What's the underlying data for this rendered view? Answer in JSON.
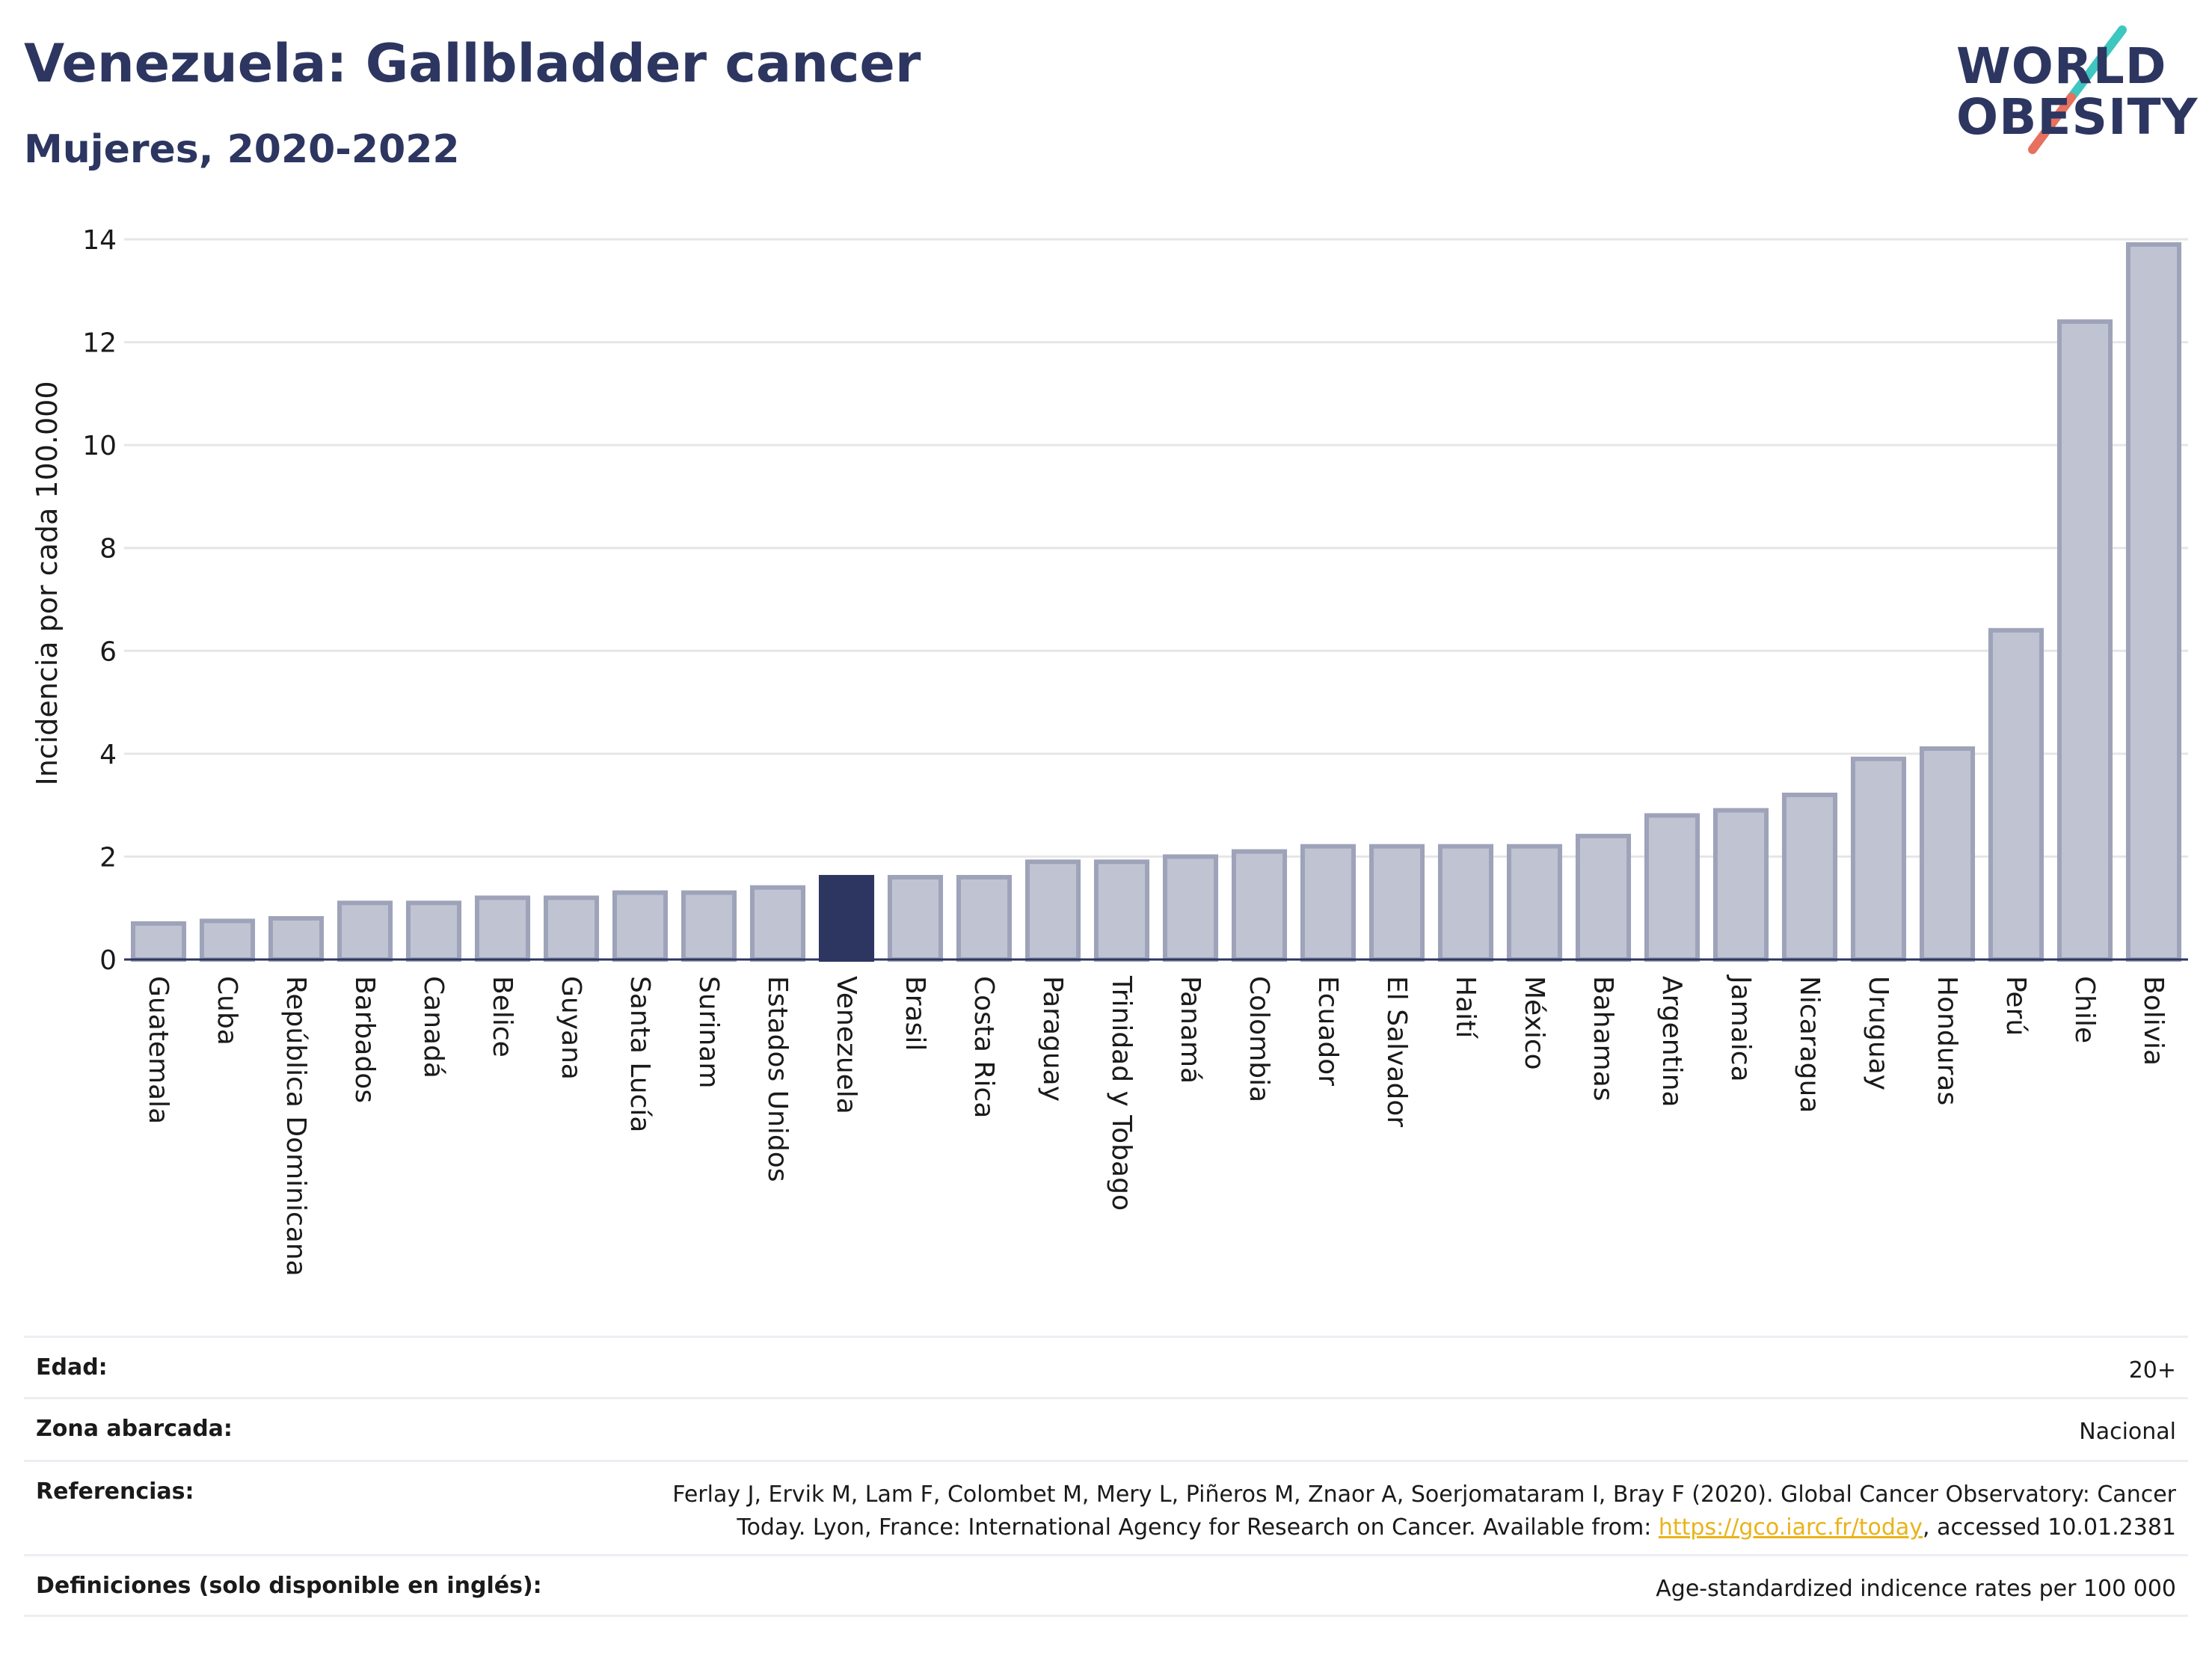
{
  "header": {
    "title": "Venezuela: Gallbladder cancer",
    "subtitle": "Mujeres, 2020-2022"
  },
  "logo": {
    "line1": "WORLD",
    "line2": "OBESITY"
  },
  "chart_data": {
    "type": "bar",
    "ylabel": "Incidencia por cada 100.000",
    "ylim": [
      0,
      14
    ],
    "yticks": [
      0,
      2,
      4,
      6,
      8,
      10,
      12,
      14
    ],
    "grid": true,
    "highlight": "Venezuela",
    "categories": [
      "Guatemala",
      "Cuba",
      "República Dominicana",
      "Barbados",
      "Canadá",
      "Belice",
      "Guyana",
      "Santa Lucía",
      "Surinam",
      "Estados Unidos",
      "Venezuela",
      "Brasil",
      "Costa Rica",
      "Paraguay",
      "Trinidad y Tobago",
      "Panamá",
      "Colombia",
      "Ecuador",
      "El Salvador",
      "Haití",
      "México",
      "Bahamas",
      "Argentina",
      "Jamaica",
      "Nicaragua",
      "Uruguay",
      "Honduras",
      "Perú",
      "Chile",
      "Bolivia"
    ],
    "values": [
      0.7,
      0.75,
      0.8,
      1.1,
      1.1,
      1.2,
      1.2,
      1.3,
      1.3,
      1.4,
      1.6,
      1.6,
      1.6,
      1.9,
      1.9,
      2.0,
      2.1,
      2.2,
      2.2,
      2.2,
      2.2,
      2.4,
      2.8,
      2.9,
      3.2,
      3.9,
      4.1,
      6.4,
      12.4,
      13.9
    ],
    "colors": {
      "bar": "#c0c3d2",
      "bar_border": "#9ea3b9",
      "highlight": "#2c3660",
      "grid": "#e6e6e6",
      "axis": "#2c3660"
    }
  },
  "meta": [
    {
      "label": "Edad:",
      "value": "20+"
    },
    {
      "label": "Zona abarcada:",
      "value": "Nacional"
    },
    {
      "label": "Referencias:",
      "value_line1": "Ferlay J, Ervik M, Lam F, Colombet M, Mery L, Piñeros M, Znaor A, Soerjomataram I, Bray F (2020). Global Cancer Observatory: Cancer",
      "value_line2_pre": "Today. Lyon, France: International Agency for Research on Cancer. Available from: ",
      "link": "https://gco.iarc.fr/today",
      "value_line2_post": ", accessed 10.01.2381"
    },
    {
      "label": "Definiciones (solo disponible en inglés):",
      "value": "Age-standardized indicence rates per 100 000"
    }
  ]
}
